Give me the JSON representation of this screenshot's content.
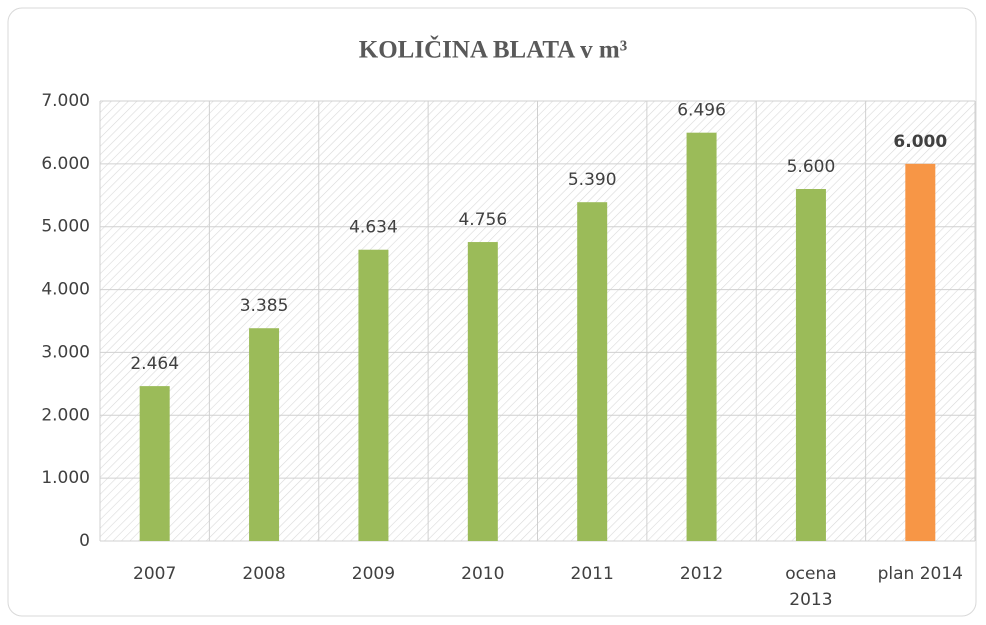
{
  "chart_data": {
    "type": "bar",
    "title": "KOLIČINA BLATA v m³",
    "categories": [
      "2007",
      "2008",
      "2009",
      "2010",
      "2011",
      "2012",
      "ocena\n2013",
      "plan 2014"
    ],
    "values": [
      2464,
      3385,
      4634,
      4756,
      5390,
      6496,
      5600,
      6000
    ],
    "value_labels": [
      "2.464",
      "3.385",
      "4.634",
      "4.756",
      "5.390",
      "6.496",
      "5.600",
      "6.000"
    ],
    "colors": [
      "#9bbb59",
      "#9bbb59",
      "#9bbb59",
      "#9bbb59",
      "#9bbb59",
      "#9bbb59",
      "#9bbb59",
      "#f79646"
    ],
    "ylim": [
      0,
      7000
    ],
    "yticks": [
      0,
      {
        "value": 1000,
        "label": "1.000"
      },
      {
        "value": 2000,
        "label": "2.000"
      },
      {
        "value": 3000,
        "label": "3.000"
      },
      {
        "value": 4000,
        "label": "4.000"
      },
      {
        "value": 5000,
        "label": "5.000"
      },
      {
        "value": 6000,
        "label": "6.000"
      },
      {
        "value": 7000,
        "label": "7.000"
      }
    ],
    "grid": true
  }
}
